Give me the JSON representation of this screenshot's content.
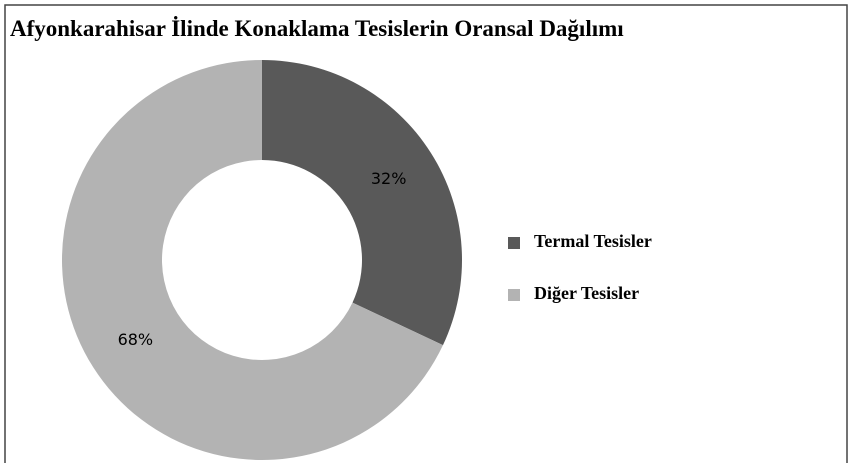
{
  "chart_data": {
    "type": "donut",
    "title": "Afyonkarahisar İlinde Konaklama Tesislerin Oransal Dağılımı",
    "categories": [
      "Termal Tesisler",
      "Diğer Tesisler"
    ],
    "values": [
      32,
      68
    ],
    "value_labels": [
      "32%",
      "68%"
    ],
    "colors": [
      "#595959",
      "#b3b3b3"
    ],
    "legend": "right"
  }
}
